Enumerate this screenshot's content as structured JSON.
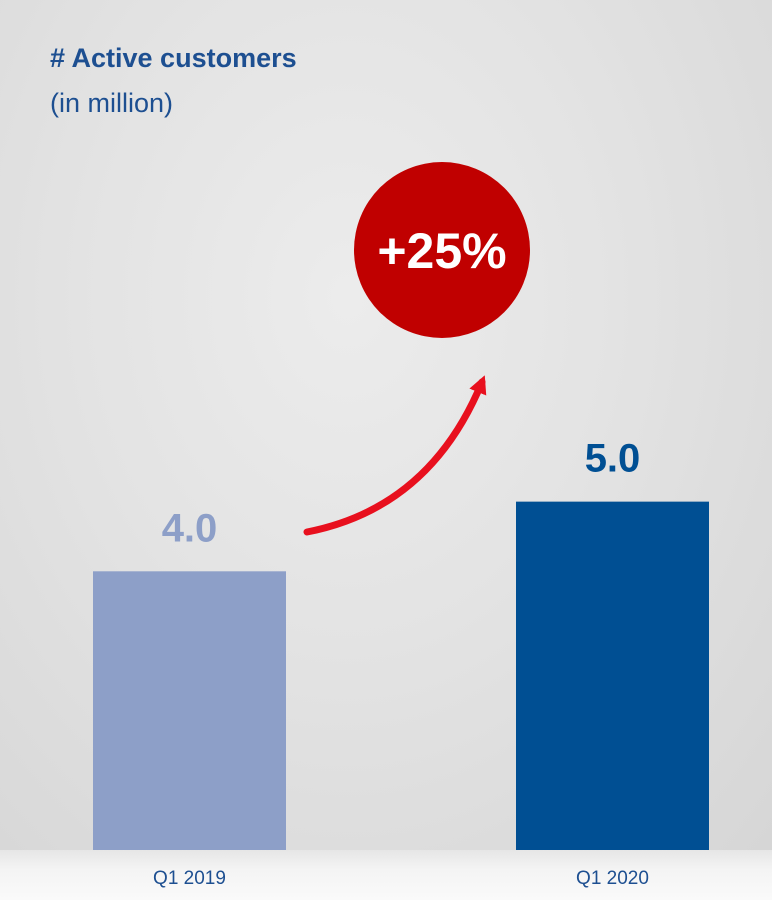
{
  "chart_data": {
    "type": "bar",
    "title": "# Active customers",
    "subtitle": "(in million)",
    "categories": [
      "Q1 2019",
      "Q1 2020"
    ],
    "values": [
      4.0,
      5.0
    ],
    "value_labels": [
      "4.0",
      "5.0"
    ],
    "ylim": [
      0,
      12.2
    ],
    "grid": false,
    "annotation": "+25%",
    "colors": {
      "bars": [
        "#8d9fc8",
        "#004f93"
      ],
      "value_labels": [
        "#8d9fc8",
        "#004f93"
      ],
      "badge": "#c00000",
      "arrow": "#e8101e"
    }
  }
}
